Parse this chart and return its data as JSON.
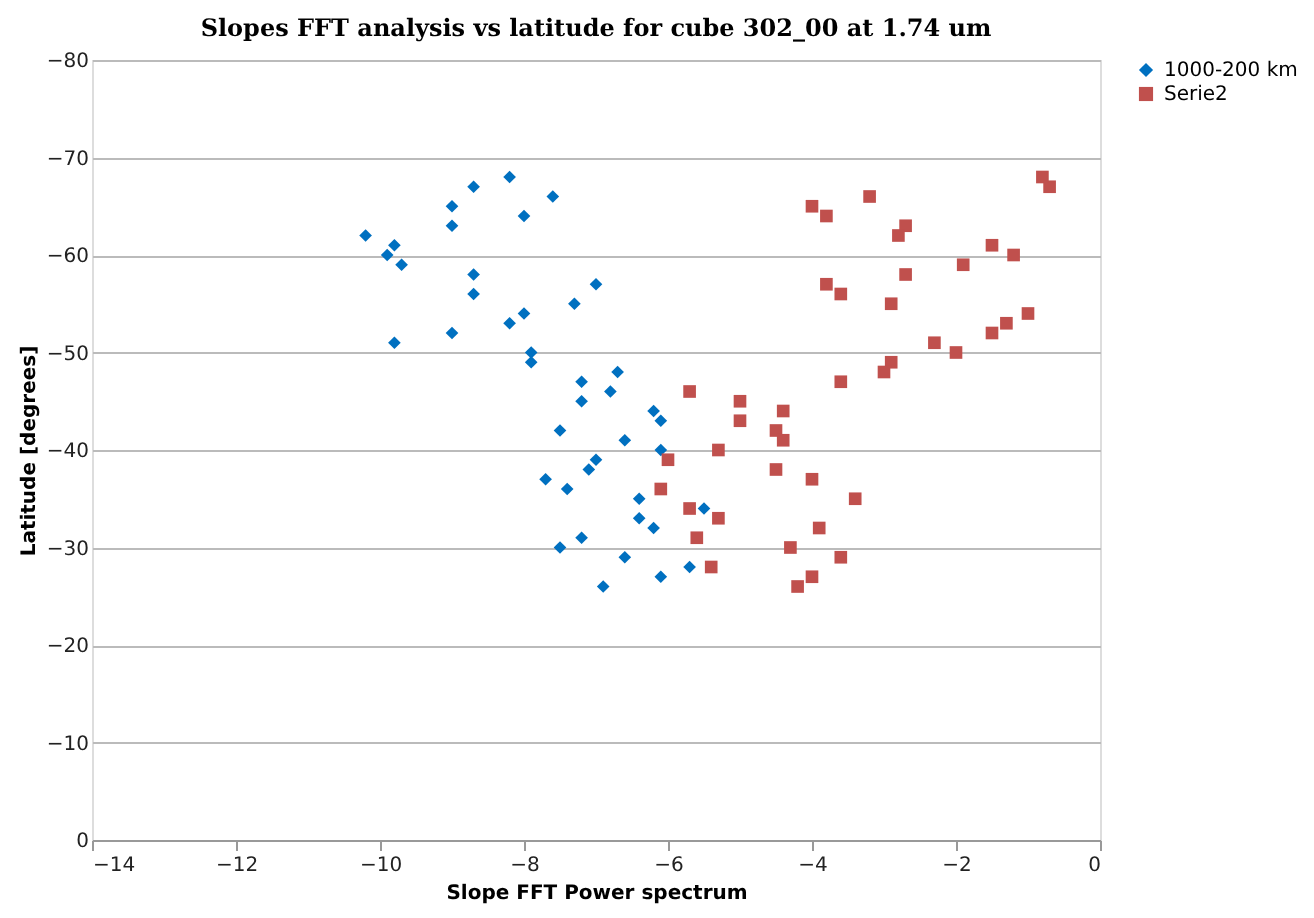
{
  "chart_data": {
    "type": "scatter",
    "title": "Slopes  FFT analysis  vs latitude for cube 302_00 at 1.74 um",
    "xlabel": "Slope FFT  Power spectrum",
    "ylabel": "Latitude [degrees]",
    "xlim": [
      -14,
      0
    ],
    "xticks": [
      -14,
      -12,
      -10,
      -8,
      -6,
      -4,
      -2,
      0
    ],
    "ylim": [
      0,
      -80
    ],
    "yticks": [
      0,
      -10,
      -20,
      -30,
      -40,
      -50,
      -60,
      -70,
      -80
    ],
    "grid": "y",
    "legend": "right",
    "series": [
      {
        "name": "1000-200 km",
        "color": "#0070c0",
        "marker": "diamond",
        "x": [
          -10.2,
          -9.9,
          -9.8,
          -9.7,
          -9.8,
          -9.0,
          -9.0,
          -8.7,
          -8.2,
          -8.0,
          -7.6,
          -8.7,
          -8.7,
          -9.0,
          -8.2,
          -8.0,
          -7.9,
          -7.9,
          -7.3,
          -7.0,
          -6.7,
          -7.2,
          -6.8,
          -7.2,
          -6.2,
          -6.1,
          -7.5,
          -6.6,
          -6.1,
          -7.0,
          -7.1,
          -7.7,
          -7.4,
          -6.4,
          -6.4,
          -6.2,
          -5.5,
          -7.5,
          -7.2,
          -6.6,
          -6.1,
          -5.7,
          -6.9
        ],
        "values": [
          -62,
          -60,
          -61,
          -59,
          -51,
          -63,
          -65,
          -67,
          -68,
          -64,
          -66,
          -58,
          -56,
          -52,
          -53,
          -54,
          -50,
          -49,
          -55,
          -57,
          -48,
          -47,
          -46,
          -45,
          -44,
          -43,
          -42,
          -41,
          -40,
          -39,
          -38,
          -37,
          -36,
          -35,
          -33,
          -32,
          -34,
          -30,
          -31,
          -29,
          -27,
          -28,
          -26
        ]
      },
      {
        "name": "Serie2",
        "color": "#c0504d",
        "marker": "square",
        "x": [
          -5.7,
          -5.0,
          -5.0,
          -4.4,
          -4.5,
          -4.4,
          -4.5,
          -5.3,
          -6.0,
          -6.1,
          -5.7,
          -5.3,
          -5.6,
          -5.4,
          -4.3,
          -4.0,
          -3.4,
          -3.9,
          -3.6,
          -4.0,
          -4.2,
          -3.6,
          -4.0,
          -3.8,
          -3.2,
          -2.7,
          -2.8,
          -0.8,
          -0.7,
          -1.5,
          -1.2,
          -1.9,
          -2.7,
          -3.8,
          -3.6,
          -2.9,
          -1.0,
          -1.3,
          -1.5,
          -2.3,
          -2.0,
          -2.9,
          -3.0
        ],
        "values": [
          -46,
          -45,
          -43,
          -44,
          -42,
          -41,
          -38,
          -40,
          -39,
          -36,
          -34,
          -33,
          -31,
          -28,
          -30,
          -37,
          -35,
          -32,
          -29,
          -27,
          -26,
          -47,
          -65,
          -64,
          -66,
          -63,
          -62,
          -68,
          -67,
          -61,
          -60,
          -59,
          -58,
          -57,
          -56,
          -55,
          -54,
          -53,
          -52,
          -51,
          -50,
          -49,
          -48
        ]
      }
    ]
  }
}
